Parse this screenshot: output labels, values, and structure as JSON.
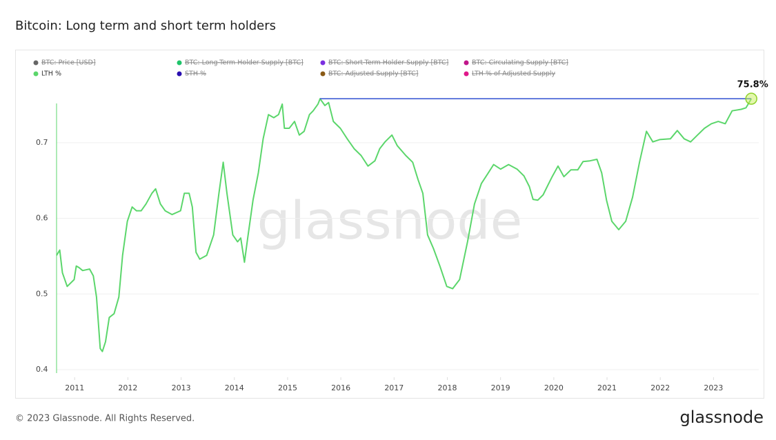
{
  "header": {
    "title": "Bitcoin: Long term and short term holders"
  },
  "chart_data": {
    "type": "line",
    "legend": [
      {
        "name": "BTC: Price [USD]",
        "color": "#666666",
        "hidden": true
      },
      {
        "name": "BTC: Long-Term Holder Supply [BTC]",
        "color": "#1fc46a",
        "hidden": true
      },
      {
        "name": "BTC: Short-Term Holder Supply [BTC]",
        "color": "#7b2fe0",
        "hidden": true
      },
      {
        "name": "BTC: Circulating Supply [BTC]",
        "color": "#c0168a",
        "hidden": true
      },
      {
        "name": "LTH %",
        "color": "#5bd66b",
        "hidden": false
      },
      {
        "name": "STH %",
        "color": "#2a0fb0",
        "hidden": true
      },
      {
        "name": "BTC: Adjusted Supply [BTC]",
        "color": "#8a5a16",
        "hidden": true
      },
      {
        "name": "LTH % of Adjusted Supply",
        "color": "#e0188a",
        "hidden": true
      }
    ],
    "x": [
      2010.66,
      2010.72,
      2010.77,
      2010.86,
      2010.99,
      2011.03,
      2011.08,
      2011.15,
      2011.28,
      2011.35,
      2011.41,
      2011.48,
      2011.52,
      2011.58,
      2011.65,
      2011.74,
      2011.83,
      2011.9,
      2011.99,
      2012.08,
      2012.16,
      2012.25,
      2012.34,
      2012.45,
      2012.52,
      2012.61,
      2012.7,
      2012.83,
      2012.99,
      2013.06,
      2013.15,
      2013.21,
      2013.28,
      2013.35,
      2013.48,
      2013.61,
      2013.71,
      2013.79,
      2013.86,
      2013.97,
      2014.06,
      2014.12,
      2014.19,
      2014.25,
      2014.35,
      2014.45,
      2014.54,
      2014.64,
      2014.74,
      2014.83,
      2014.9,
      2014.94,
      2015.03,
      2015.13,
      2015.22,
      2015.31,
      2015.41,
      2015.48,
      2015.57,
      2015.61,
      2015.7,
      2015.77,
      2015.86,
      2015.99,
      2016.12,
      2016.25,
      2016.38,
      2016.51,
      2016.64,
      2016.73,
      2016.83,
      2016.96,
      2017.06,
      2017.22,
      2017.35,
      2017.45,
      2017.54,
      2017.63,
      2017.74,
      2017.86,
      2017.99,
      2018.1,
      2018.23,
      2018.38,
      2018.51,
      2018.64,
      2018.77,
      2018.87,
      2019.0,
      2019.15,
      2019.31,
      2019.44,
      2019.54,
      2019.61,
      2019.7,
      2019.8,
      2019.89,
      2019.97,
      2020.08,
      2020.19,
      2020.32,
      2020.45,
      2020.55,
      2020.68,
      2020.81,
      2020.9,
      2020.99,
      2021.09,
      2021.22,
      2021.35,
      2021.48,
      2021.61,
      2021.74,
      2021.86,
      2021.99,
      2022.19,
      2022.32,
      2022.45,
      2022.57,
      2022.7,
      2022.83,
      2022.96,
      2023.09,
      2023.22,
      2023.35,
      2023.52,
      2023.61,
      2023.71
    ],
    "series": [
      {
        "name": "LTH %",
        "color": "#5bd66b",
        "values": [
          0.551,
          0.558,
          0.528,
          0.51,
          0.519,
          0.537,
          0.535,
          0.531,
          0.533,
          0.524,
          0.496,
          0.428,
          0.424,
          0.437,
          0.469,
          0.474,
          0.496,
          0.551,
          0.596,
          0.615,
          0.61,
          0.61,
          0.619,
          0.633,
          0.639,
          0.619,
          0.61,
          0.605,
          0.61,
          0.633,
          0.633,
          0.615,
          0.555,
          0.546,
          0.551,
          0.578,
          0.633,
          0.674,
          0.633,
          0.578,
          0.569,
          0.574,
          0.542,
          0.574,
          0.624,
          0.66,
          0.705,
          0.737,
          0.733,
          0.737,
          0.751,
          0.719,
          0.719,
          0.728,
          0.71,
          0.715,
          0.737,
          0.742,
          0.751,
          0.758,
          0.749,
          0.753,
          0.728,
          0.719,
          0.705,
          0.692,
          0.683,
          0.669,
          0.676,
          0.692,
          0.701,
          0.71,
          0.696,
          0.683,
          0.674,
          0.651,
          0.633,
          0.578,
          0.56,
          0.537,
          0.51,
          0.507,
          0.519,
          0.569,
          0.619,
          0.646,
          0.66,
          0.671,
          0.665,
          0.671,
          0.665,
          0.656,
          0.642,
          0.625,
          0.624,
          0.631,
          0.644,
          0.655,
          0.669,
          0.655,
          0.664,
          0.664,
          0.675,
          0.676,
          0.678,
          0.66,
          0.624,
          0.596,
          0.585,
          0.596,
          0.628,
          0.674,
          0.715,
          0.701,
          0.704,
          0.705,
          0.716,
          0.705,
          0.701,
          0.71,
          0.719,
          0.725,
          0.728,
          0.725,
          0.742,
          0.744,
          0.746,
          0.758
        ]
      }
    ],
    "annotation": {
      "text": "75.8%",
      "x": 2023.71,
      "value": 0.758,
      "line_from_x": 2015.61,
      "line_color": "#2d4fd1"
    },
    "xlim": [
      2010.66,
      2023.85
    ],
    "xticks": [
      2011,
      2012,
      2013,
      2014,
      2015,
      2016,
      2017,
      2018,
      2019,
      2020,
      2021,
      2022,
      2023
    ],
    "ylim": [
      0.39,
      0.77
    ],
    "yticks": [
      0.4,
      0.5,
      0.6,
      0.7
    ],
    "grid": true
  },
  "watermark": "glassnode",
  "footer": {
    "copyright": "© 2023 Glassnode. All Rights Reserved.",
    "logo": "glassnode"
  }
}
